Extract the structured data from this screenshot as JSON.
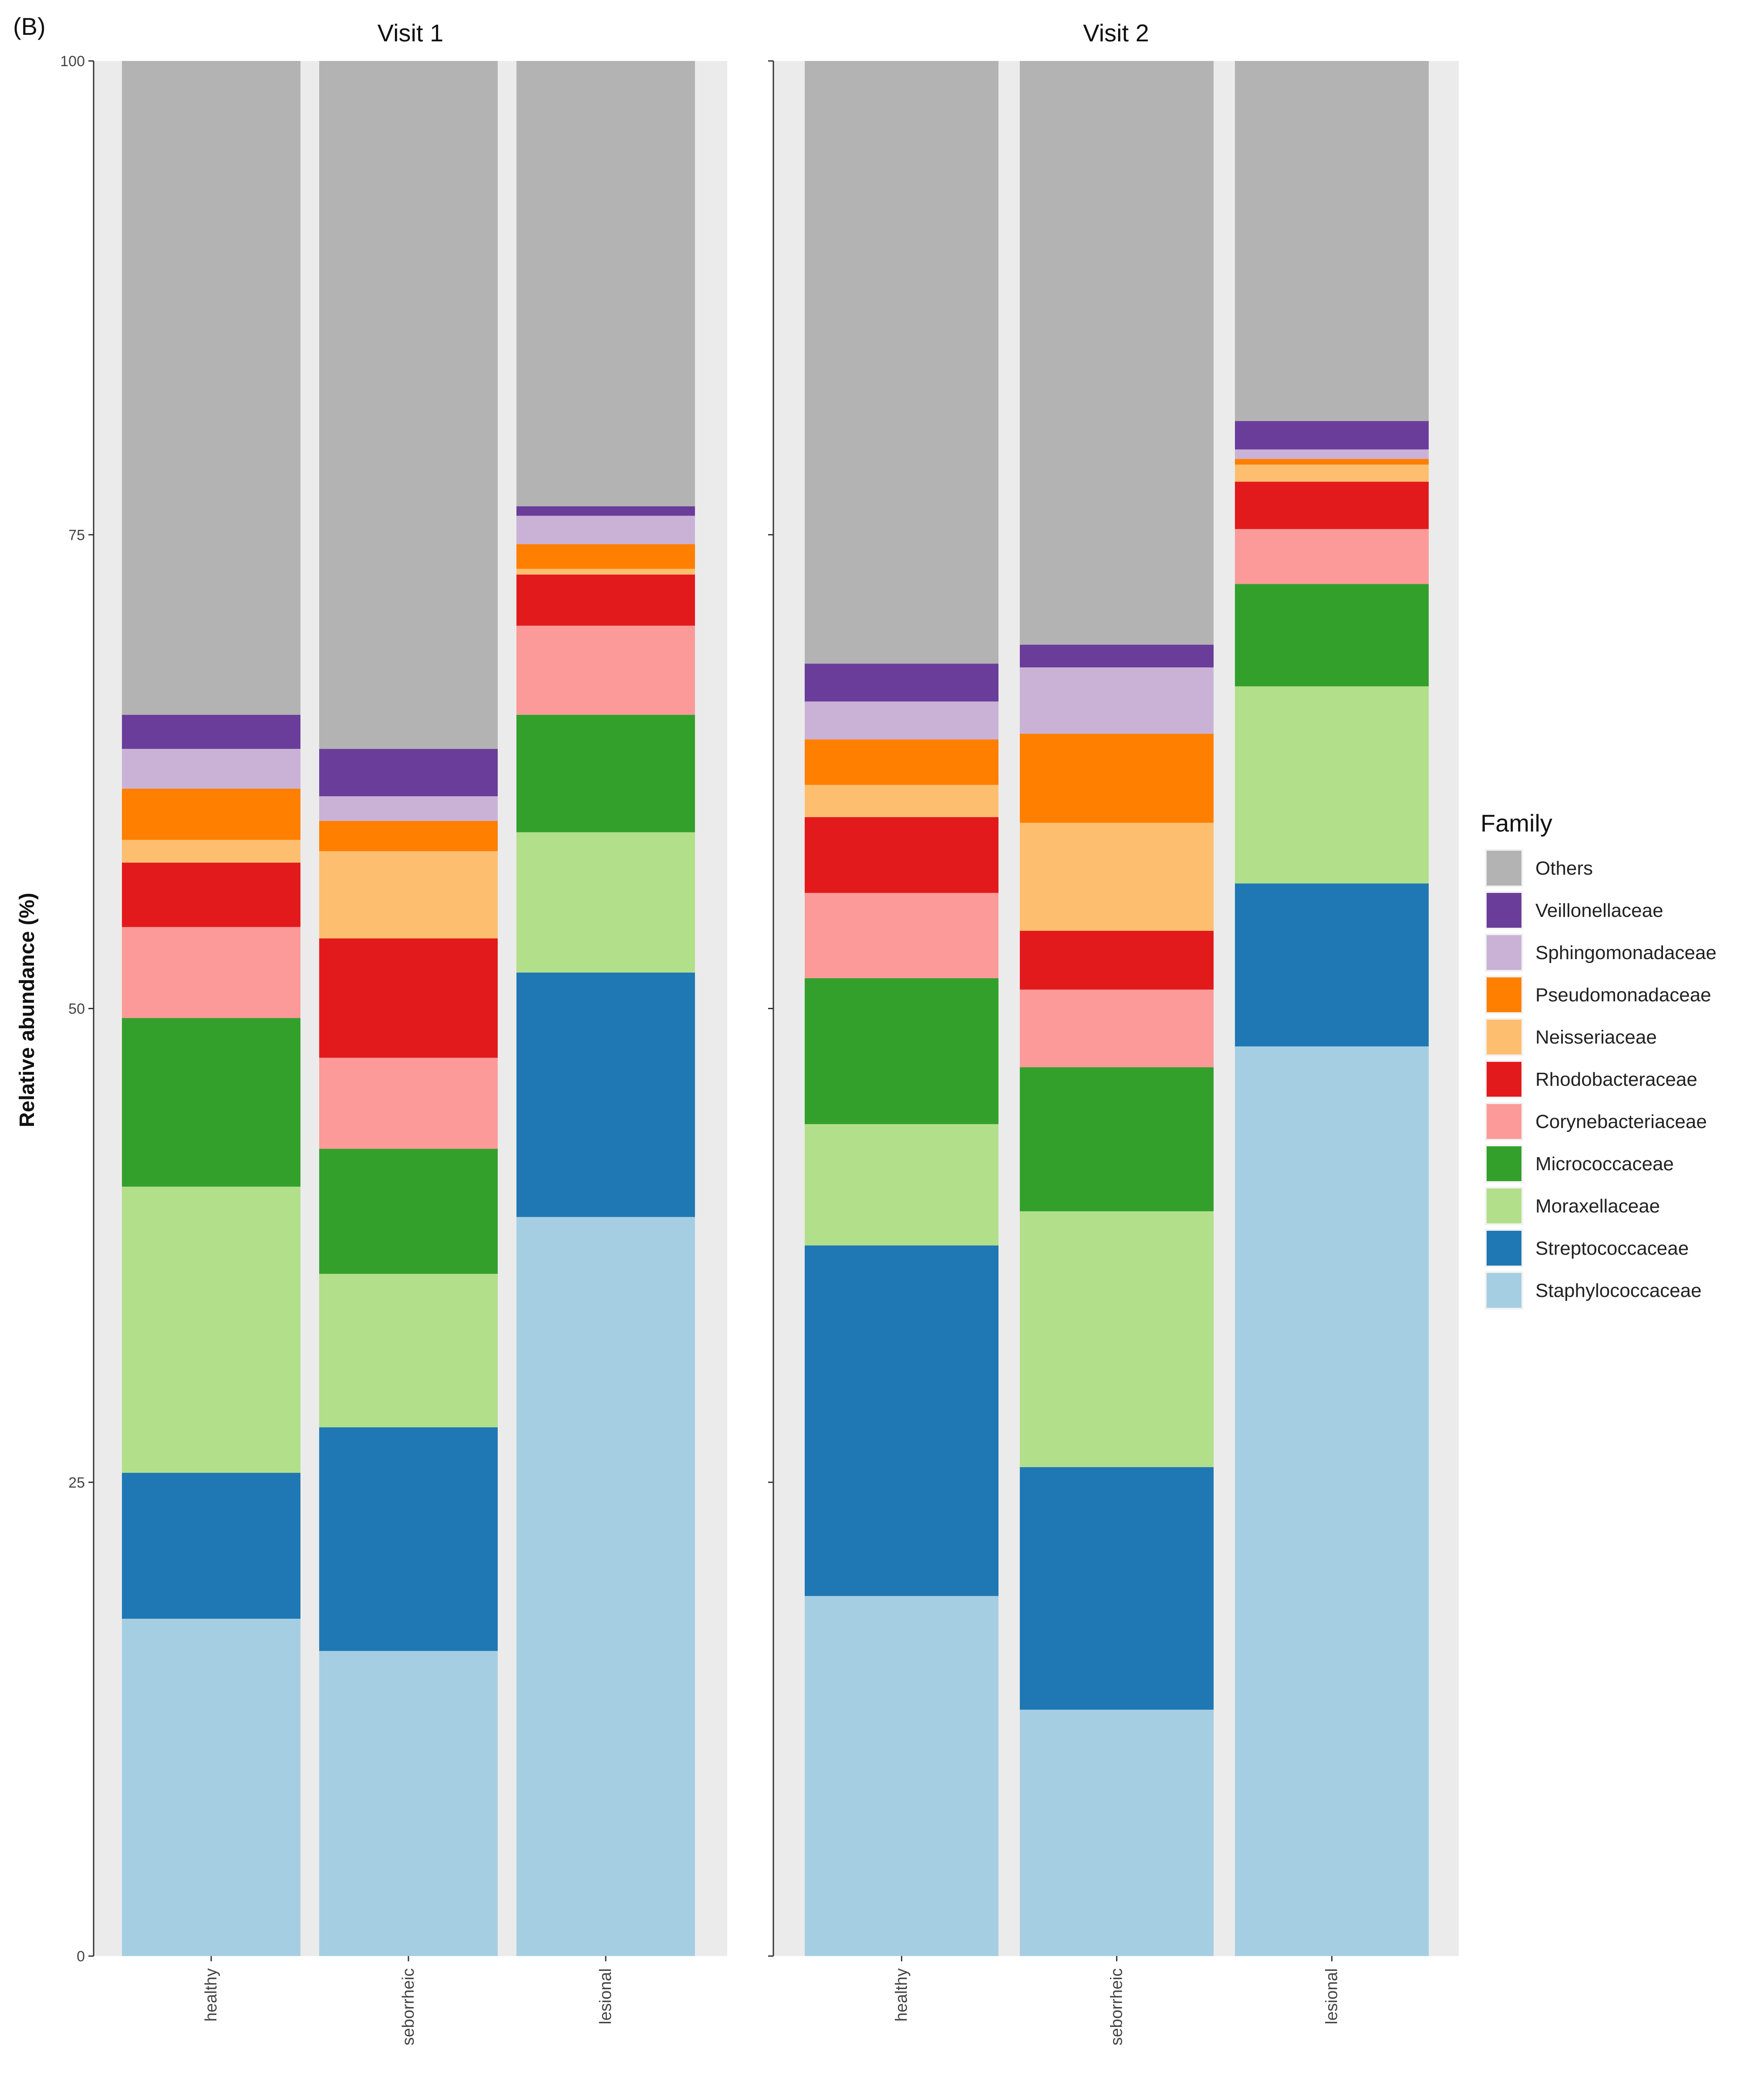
{
  "chart_data": {
    "type": "bar",
    "stacked": true,
    "panel_label": "(B)",
    "ylabel": "Relative abundance (%)",
    "ylim": [
      0,
      100
    ],
    "yticks": [
      0,
      25,
      50,
      75,
      100
    ],
    "legend_title": "Family",
    "legend_position": "right",
    "categories": [
      "healthy",
      "seborrheic",
      "lesional"
    ],
    "families": [
      {
        "name": "Staphylococcaceae",
        "color": "#a6cee3"
      },
      {
        "name": "Streptococcaceae",
        "color": "#1f78b4"
      },
      {
        "name": "Moraxellaceae",
        "color": "#b2df8a"
      },
      {
        "name": "Micrococcaceae",
        "color": "#33a02c"
      },
      {
        "name": "Corynebacteriaceae",
        "color": "#fb9a99"
      },
      {
        "name": "Rhodobacteraceae",
        "color": "#e31a1c"
      },
      {
        "name": "Neisseriaceae",
        "color": "#fdbf6f"
      },
      {
        "name": "Pseudomonadaceae",
        "color": "#ff7f00"
      },
      {
        "name": "Sphingomonadaceae",
        "color": "#cab2d6"
      },
      {
        "name": "Veillonellaceae",
        "color": "#6a3d9a"
      },
      {
        "name": "Others",
        "color": "#b3b3b3"
      }
    ],
    "panels": [
      {
        "title": "Visit 1",
        "bars": [
          {
            "category": "healthy",
            "values": [
              17.8,
              7.7,
              15.1,
              8.9,
              4.8,
              3.4,
              1.2,
              2.7,
              2.1,
              1.8,
              34.5
            ]
          },
          {
            "category": "seborrheic",
            "values": [
              16.1,
              11.8,
              8.1,
              6.6,
              4.8,
              6.3,
              4.6,
              1.6,
              1.3,
              2.5,
              36.3
            ]
          },
          {
            "category": "lesional",
            "values": [
              39.0,
              12.9,
              7.4,
              6.2,
              4.7,
              2.7,
              0.3,
              1.3,
              1.5,
              0.5,
              23.5
            ]
          }
        ]
      },
      {
        "title": "Visit 2",
        "bars": [
          {
            "category": "healthy",
            "values": [
              19.0,
              18.5,
              6.4,
              7.7,
              4.5,
              4.0,
              1.7,
              2.4,
              2.0,
              2.0,
              31.8
            ]
          },
          {
            "category": "seborrheic",
            "values": [
              13.0,
              12.8,
              13.5,
              7.6,
              4.1,
              3.1,
              5.7,
              4.7,
              3.5,
              1.2,
              30.8
            ]
          },
          {
            "category": "lesional",
            "values": [
              48.0,
              8.6,
              10.4,
              5.4,
              2.9,
              2.5,
              0.9,
              0.3,
              0.5,
              1.5,
              19.0
            ]
          }
        ]
      }
    ]
  }
}
